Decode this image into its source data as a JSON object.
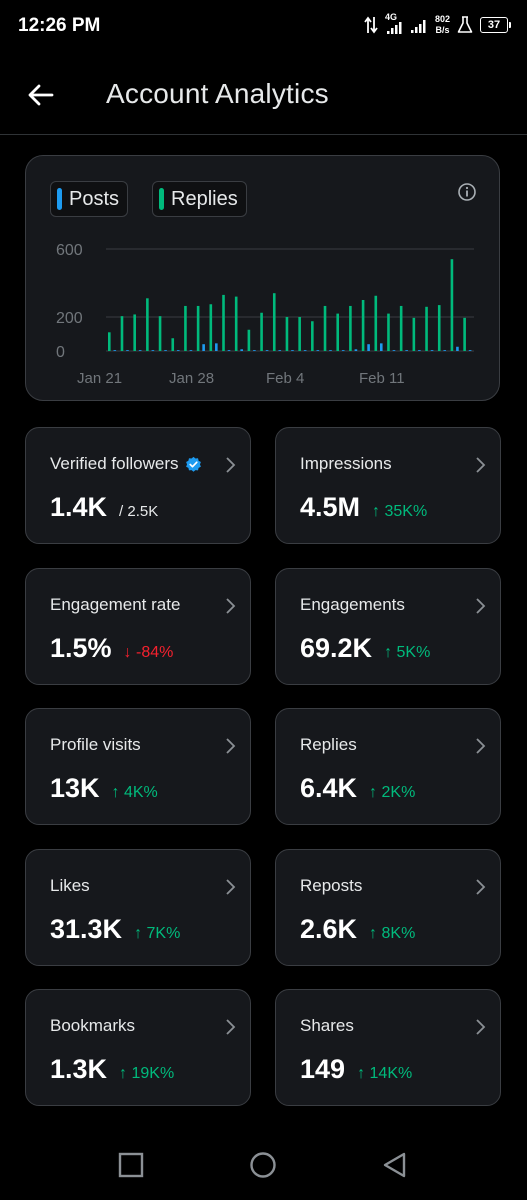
{
  "status": {
    "time": "12:26 PM",
    "net_speed_value": "802",
    "net_speed_unit": "B/s",
    "network_type": "4G",
    "battery": "37"
  },
  "header": {
    "title": "Account Analytics"
  },
  "chart": {
    "legend": [
      {
        "label": "Posts",
        "color": "#1d9bf0"
      },
      {
        "label": "Replies",
        "color": "#00ba7c"
      }
    ]
  },
  "chart_data": {
    "type": "bar",
    "y_ticks": [
      "600",
      "200",
      "0"
    ],
    "ylim": [
      0,
      600
    ],
    "x_tick_labels": [
      "Jan 21",
      "Jan 28",
      "Feb 4",
      "Feb 11"
    ],
    "grid": true,
    "legend_position": "top-left",
    "series": [
      {
        "name": "Replies",
        "color": "#00ba7c",
        "values": [
          110,
          205,
          215,
          310,
          205,
          75,
          265,
          265,
          275,
          330,
          320,
          125,
          225,
          340,
          200,
          200,
          175,
          265,
          220,
          265,
          300,
          325,
          220,
          265,
          195,
          260,
          270,
          540,
          195
        ]
      },
      {
        "name": "Posts",
        "color": "#1d9bf0",
        "values": [
          5,
          5,
          5,
          5,
          5,
          5,
          5,
          40,
          45,
          5,
          10,
          5,
          5,
          5,
          5,
          5,
          5,
          5,
          5,
          10,
          40,
          45,
          5,
          5,
          5,
          5,
          5,
          25,
          5
        ]
      }
    ]
  },
  "stats": [
    {
      "label": "Verified followers",
      "value": "1.4K",
      "sub": "/ 2.5K",
      "change": "",
      "trend": "none",
      "verified": true
    },
    {
      "label": "Impressions",
      "value": "4.5M",
      "sub": "",
      "change": "35K%",
      "trend": "up"
    },
    {
      "label": "Engagement rate",
      "value": "1.5%",
      "sub": "",
      "change": "-84%",
      "trend": "down"
    },
    {
      "label": "Engagements",
      "value": "69.2K",
      "sub": "",
      "change": "5K%",
      "trend": "up"
    },
    {
      "label": "Profile visits",
      "value": "13K",
      "sub": "",
      "change": "4K%",
      "trend": "up"
    },
    {
      "label": "Replies",
      "value": "6.4K",
      "sub": "",
      "change": "2K%",
      "trend": "up"
    },
    {
      "label": "Likes",
      "value": "31.3K",
      "sub": "",
      "change": "7K%",
      "trend": "up"
    },
    {
      "label": "Reposts",
      "value": "2.6K",
      "sub": "",
      "change": "8K%",
      "trend": "up"
    },
    {
      "label": "Bookmarks",
      "value": "1.3K",
      "sub": "",
      "change": "19K%",
      "trend": "up"
    },
    {
      "label": "Shares",
      "value": "149",
      "sub": "",
      "change": "14K%",
      "trend": "up"
    }
  ],
  "colors": {
    "up": "#00ba7c",
    "down": "#f4212e",
    "verified": "#1d9bf0"
  },
  "nav": {
    "icons": [
      "recents-square-icon",
      "home-circle-icon",
      "back-triangle-icon"
    ]
  }
}
